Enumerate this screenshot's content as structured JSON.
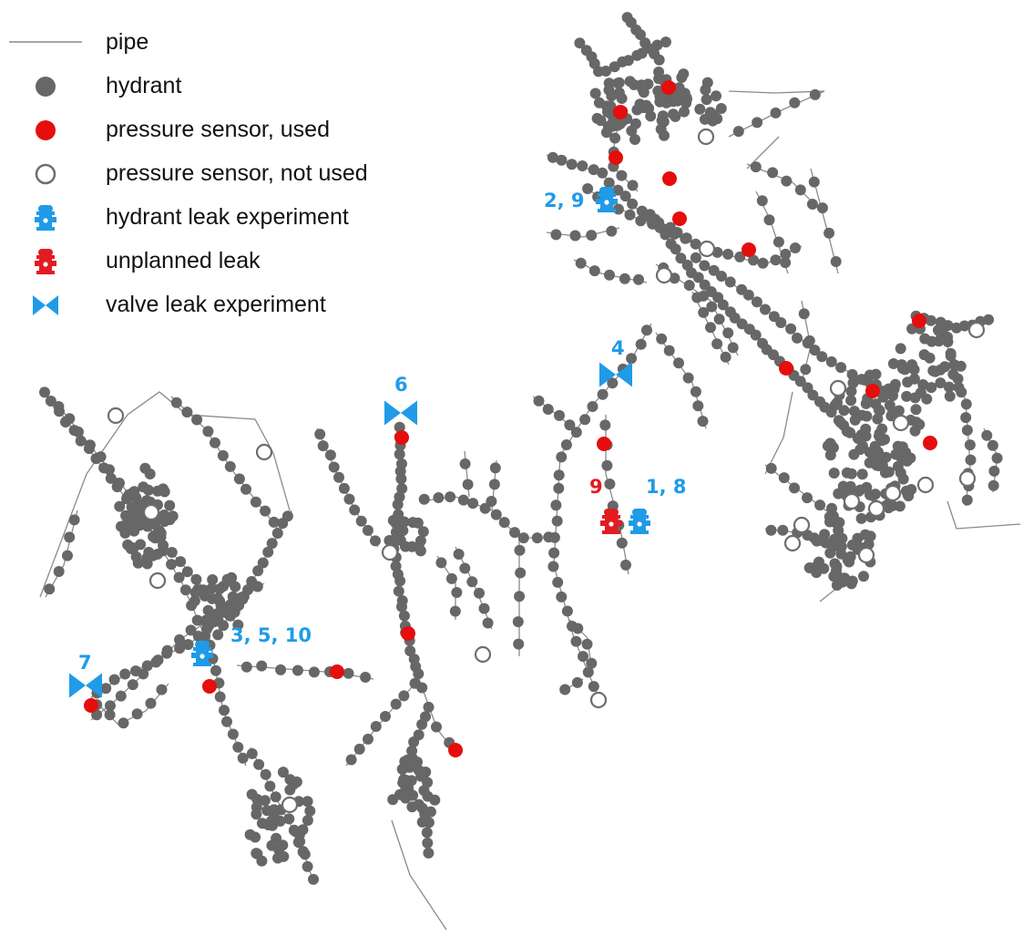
{
  "colors": {
    "pipe": "#8a8a8a",
    "hydrant": "#676767",
    "sensor_used": "#e60d0d",
    "sensor_unused_stroke": "#6e6e6e",
    "experiment_blue": "#1f9be8",
    "unplanned_red": "#e31b23"
  },
  "legend": {
    "pipe": "pipe",
    "hydrant": "hydrant",
    "sensor_used": "pressure sensor, used",
    "sensor_unused": "pressure sensor, not used",
    "hydrant_leak": "hydrant leak experiment",
    "unplanned_leak": "unplanned leak",
    "valve_leak": "valve leak experiment"
  },
  "legend_icons": {
    "pipe": "line",
    "hydrant": "gray-dot-icon",
    "sensor_used": "red-dot-icon",
    "sensor_unused": "hollow-circle-icon",
    "hydrant_leak": "blue-hydrant-icon",
    "unplanned_leak": "red-hydrant-icon",
    "valve_leak": "blue-valve-icon"
  },
  "markers": {
    "leak_2_9": "2, 9",
    "leak_4": "4",
    "leak_6": "6",
    "leak_9_unplanned": "9",
    "leak_1_8": "1, 8",
    "leak_3_5_10": "3, 5, 10",
    "leak_7": "7"
  }
}
